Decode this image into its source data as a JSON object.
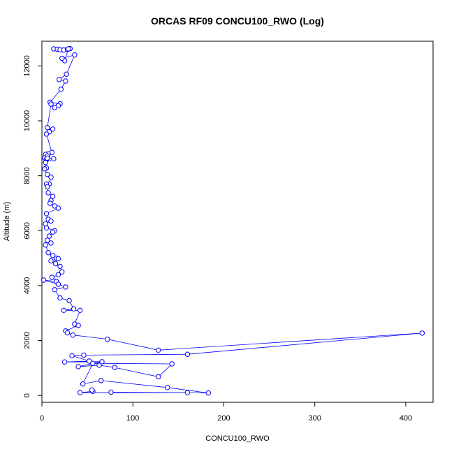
{
  "chart_data": {
    "type": "scatter",
    "title": "ORCAS RF09 CONCU100_RWO (Log)",
    "xlabel": "CONCU100_RWO",
    "ylabel": "Altitude (m)",
    "xlim": [
      0,
      430
    ],
    "ylim": [
      -250,
      12900
    ],
    "xticks": [
      0,
      100,
      200,
      300,
      400
    ],
    "yticks": [
      0,
      2000,
      4000,
      6000,
      8000,
      10000,
      12000
    ],
    "grid": false,
    "legend": "none",
    "mode": "lines+markers",
    "color": "#0000ff",
    "series": [
      {
        "x": [
          13,
          17,
          20,
          24,
          28,
          31,
          29,
          25,
          22,
          36,
          27,
          19,
          26,
          21,
          9,
          20,
          18,
          14,
          10,
          6,
          12,
          8,
          5,
          11,
          7,
          4,
          6,
          3,
          5,
          6,
          13,
          4,
          5,
          3,
          6,
          10,
          8,
          5,
          6,
          7,
          12,
          10,
          9,
          14,
          18,
          5,
          7,
          10,
          4,
          5,
          14,
          12,
          8,
          6,
          10,
          4,
          7,
          12,
          16,
          18,
          10,
          15,
          20,
          22,
          18,
          11,
          16,
          2,
          18,
          26,
          14,
          20,
          30,
          35,
          24,
          42,
          36,
          40,
          26,
          28,
          34,
          72,
          128,
          418,
          160,
          46,
          33,
          52,
          25,
          66,
          40,
          63,
          80,
          128,
          143,
          56,
          45,
          65,
          138,
          183,
          76,
          160,
          42,
          56,
          55
        ],
        "y": [
          12620,
          12610,
          12590,
          12580,
          12600,
          12630,
          12620,
          12190,
          12280,
          12400,
          11700,
          11500,
          11450,
          11150,
          10680,
          10620,
          10550,
          10480,
          10610,
          9750,
          9700,
          9600,
          9520,
          8850,
          8800,
          8780,
          8720,
          8650,
          8600,
          8640,
          8620,
          8480,
          8280,
          8250,
          8050,
          7950,
          7700,
          7700,
          7600,
          7380,
          7250,
          7100,
          7000,
          6900,
          6820,
          6620,
          6420,
          6350,
          6250,
          6100,
          6000,
          5950,
          5800,
          5650,
          5550,
          5480,
          5200,
          5100,
          5000,
          4980,
          4900,
          4800,
          4700,
          4500,
          4400,
          4300,
          4150,
          4200,
          4050,
          3950,
          3850,
          3550,
          3450,
          3150,
          3100,
          3100,
          2600,
          2550,
          2350,
          2280,
          2200,
          2050,
          1650,
          2270,
          1500,
          1470,
          1450,
          1250,
          1220,
          1230,
          1050,
          1100,
          1020,
          680,
          1150,
          1170,
          420,
          540,
          290,
          90,
          120,
          100,
          100,
          150,
          200
        ]
      }
    ]
  }
}
